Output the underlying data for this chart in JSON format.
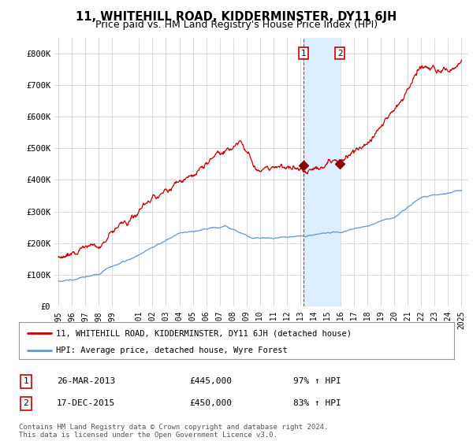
{
  "title": "11, WHITEHILL ROAD, KIDDERMINSTER, DY11 6JH",
  "subtitle": "Price paid vs. HM Land Registry's House Price Index (HPI)",
  "ylim": [
    0,
    850000
  ],
  "yticks": [
    0,
    100000,
    200000,
    300000,
    400000,
    500000,
    600000,
    700000,
    800000
  ],
  "ytick_labels": [
    "£0",
    "£100K",
    "£200K",
    "£300K",
    "£400K",
    "£500K",
    "£600K",
    "£700K",
    "£800K"
  ],
  "hpi_color": "#6699cc",
  "price_color": "#cc0000",
  "shade_color": "#ddeeff",
  "transaction1_date_num": 2013.23,
  "transaction2_date_num": 2015.96,
  "transaction1_price": 445000,
  "transaction2_price": 450000,
  "legend_label_price": "11, WHITEHILL ROAD, KIDDERMINSTER, DY11 6JH (detached house)",
  "legend_label_hpi": "HPI: Average price, detached house, Wyre Forest",
  "table_row1": [
    "1",
    "26-MAR-2013",
    "£445,000",
    "97% ↑ HPI"
  ],
  "table_row2": [
    "2",
    "17-DEC-2015",
    "£450,000",
    "83% ↑ HPI"
  ],
  "footnote": "Contains HM Land Registry data © Crown copyright and database right 2024.\nThis data is licensed under the Open Government Licence v3.0.",
  "background_color": "#ffffff",
  "grid_color": "#cccccc",
  "title_fontsize": 10.5,
  "subtitle_fontsize": 9
}
